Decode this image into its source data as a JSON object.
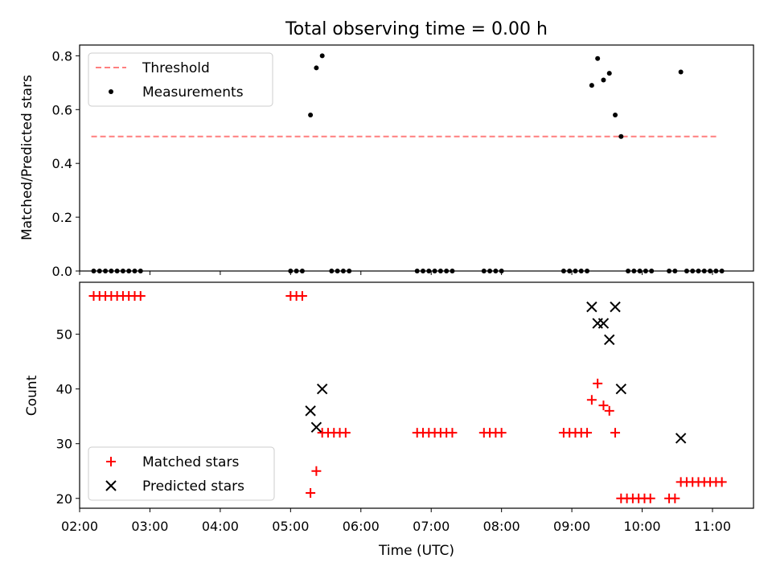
{
  "chart_data": [
    {
      "type": "scatter",
      "title": "Total observing time = 0.00 h",
      "xlabel": "",
      "ylabel": "Matched/Predicted stars",
      "xlim": [
        "02:00",
        "11:35"
      ],
      "ylim": [
        0,
        0.84
      ],
      "yticks": [
        0.0,
        0.2,
        0.4,
        0.6,
        0.8
      ],
      "ytick_labels": [
        "0.0",
        "0.2",
        "0.4",
        "0.6",
        "0.8"
      ],
      "legend_position": "top-left",
      "series": [
        {
          "name": "Threshold",
          "style": "dashed-line",
          "color": "#ff7f7f",
          "points": [
            [
              "02:10",
              0.5
            ],
            [
              "11:05",
              0.5
            ]
          ]
        },
        {
          "name": "Measurements",
          "style": "dot",
          "color": "#000000",
          "points": [
            [
              "02:12",
              0
            ],
            [
              "02:17",
              0
            ],
            [
              "02:22",
              0
            ],
            [
              "02:27",
              0
            ],
            [
              "02:32",
              0
            ],
            [
              "02:37",
              0
            ],
            [
              "02:42",
              0
            ],
            [
              "02:47",
              0
            ],
            [
              "02:52",
              0
            ],
            [
              "05:00",
              0
            ],
            [
              "05:05",
              0
            ],
            [
              "05:10",
              0
            ],
            [
              "05:17",
              0.58
            ],
            [
              "05:22",
              0.755
            ],
            [
              "05:27",
              0.8
            ],
            [
              "05:35",
              0
            ],
            [
              "05:40",
              0
            ],
            [
              "05:45",
              0
            ],
            [
              "05:50",
              0
            ],
            [
              "06:48",
              0
            ],
            [
              "06:53",
              0
            ],
            [
              "06:58",
              0
            ],
            [
              "07:03",
              0
            ],
            [
              "07:08",
              0
            ],
            [
              "07:13",
              0
            ],
            [
              "07:18",
              0
            ],
            [
              "07:45",
              0
            ],
            [
              "07:50",
              0
            ],
            [
              "07:55",
              0
            ],
            [
              "08:00",
              0
            ],
            [
              "08:53",
              0
            ],
            [
              "08:58",
              0
            ],
            [
              "09:03",
              0
            ],
            [
              "09:08",
              0
            ],
            [
              "09:13",
              0
            ],
            [
              "09:17",
              0.69
            ],
            [
              "09:22",
              0.79
            ],
            [
              "09:27",
              0.71
            ],
            [
              "09:32",
              0.735
            ],
            [
              "09:37",
              0.58
            ],
            [
              "09:42",
              0.5
            ],
            [
              "09:48",
              0
            ],
            [
              "09:53",
              0
            ],
            [
              "09:58",
              0
            ],
            [
              "10:03",
              0
            ],
            [
              "10:08",
              0
            ],
            [
              "10:23",
              0
            ],
            [
              "10:28",
              0
            ],
            [
              "10:33",
              0.74
            ],
            [
              "10:38",
              0
            ],
            [
              "10:43",
              0
            ],
            [
              "10:48",
              0
            ],
            [
              "10:53",
              0
            ],
            [
              "10:58",
              0
            ],
            [
              "11:03",
              0
            ],
            [
              "11:08",
              0
            ]
          ]
        }
      ]
    },
    {
      "type": "scatter",
      "title": "",
      "xlabel": "Time (UTC)",
      "ylabel": "Count",
      "xlim": [
        "02:00",
        "11:35"
      ],
      "ylim": [
        18.2,
        59.5
      ],
      "yticks": [
        20,
        30,
        40,
        50
      ],
      "ytick_labels": [
        "20",
        "30",
        "40",
        "50"
      ],
      "xticks": [
        "02:00",
        "03:00",
        "04:00",
        "05:00",
        "06:00",
        "07:00",
        "08:00",
        "09:00",
        "10:00",
        "11:00"
      ],
      "xtick_labels": [
        "02:00",
        "03:00",
        "04:00",
        "05:00",
        "06:00",
        "07:00",
        "08:00",
        "09:00",
        "10:00",
        "11:00"
      ],
      "legend_position": "bottom-left",
      "series": [
        {
          "name": "Matched stars",
          "style": "plus",
          "color": "#ff0000",
          "points": [
            [
              "02:12",
              57
            ],
            [
              "02:17",
              57
            ],
            [
              "02:22",
              57
            ],
            [
              "02:27",
              57
            ],
            [
              "02:32",
              57
            ],
            [
              "02:37",
              57
            ],
            [
              "02:42",
              57
            ],
            [
              "02:47",
              57
            ],
            [
              "02:52",
              57
            ],
            [
              "05:00",
              57
            ],
            [
              "05:05",
              57
            ],
            [
              "05:10",
              57
            ],
            [
              "05:17",
              21
            ],
            [
              "05:22",
              25
            ],
            [
              "05:27",
              32
            ],
            [
              "05:32",
              32
            ],
            [
              "05:37",
              32
            ],
            [
              "05:42",
              32
            ],
            [
              "05:47",
              32
            ],
            [
              "06:48",
              32
            ],
            [
              "06:53",
              32
            ],
            [
              "06:58",
              32
            ],
            [
              "07:03",
              32
            ],
            [
              "07:08",
              32
            ],
            [
              "07:13",
              32
            ],
            [
              "07:18",
              32
            ],
            [
              "07:45",
              32
            ],
            [
              "07:50",
              32
            ],
            [
              "07:55",
              32
            ],
            [
              "08:00",
              32
            ],
            [
              "08:53",
              32
            ],
            [
              "08:58",
              32
            ],
            [
              "09:03",
              32
            ],
            [
              "09:08",
              32
            ],
            [
              "09:13",
              32
            ],
            [
              "09:17",
              38
            ],
            [
              "09:22",
              41
            ],
            [
              "09:27",
              37
            ],
            [
              "09:32",
              36
            ],
            [
              "09:37",
              32
            ],
            [
              "09:42",
              20
            ],
            [
              "09:47",
              20
            ],
            [
              "09:52",
              20
            ],
            [
              "09:57",
              20
            ],
            [
              "10:02",
              20
            ],
            [
              "10:07",
              20
            ],
            [
              "10:23",
              20
            ],
            [
              "10:28",
              20
            ],
            [
              "10:33",
              23
            ],
            [
              "10:38",
              23
            ],
            [
              "10:43",
              23
            ],
            [
              "10:48",
              23
            ],
            [
              "10:53",
              23
            ],
            [
              "10:58",
              23
            ],
            [
              "11:03",
              23
            ],
            [
              "11:08",
              23
            ]
          ]
        },
        {
          "name": "Predicted stars",
          "style": "x",
          "color": "#000000",
          "points": [
            [
              "05:17",
              36
            ],
            [
              "05:22",
              33
            ],
            [
              "05:27",
              40
            ],
            [
              "09:17",
              55
            ],
            [
              "09:22",
              52
            ],
            [
              "09:27",
              52
            ],
            [
              "09:32",
              49
            ],
            [
              "09:37",
              55
            ],
            [
              "09:42",
              40
            ],
            [
              "10:33",
              31
            ]
          ]
        }
      ]
    }
  ]
}
